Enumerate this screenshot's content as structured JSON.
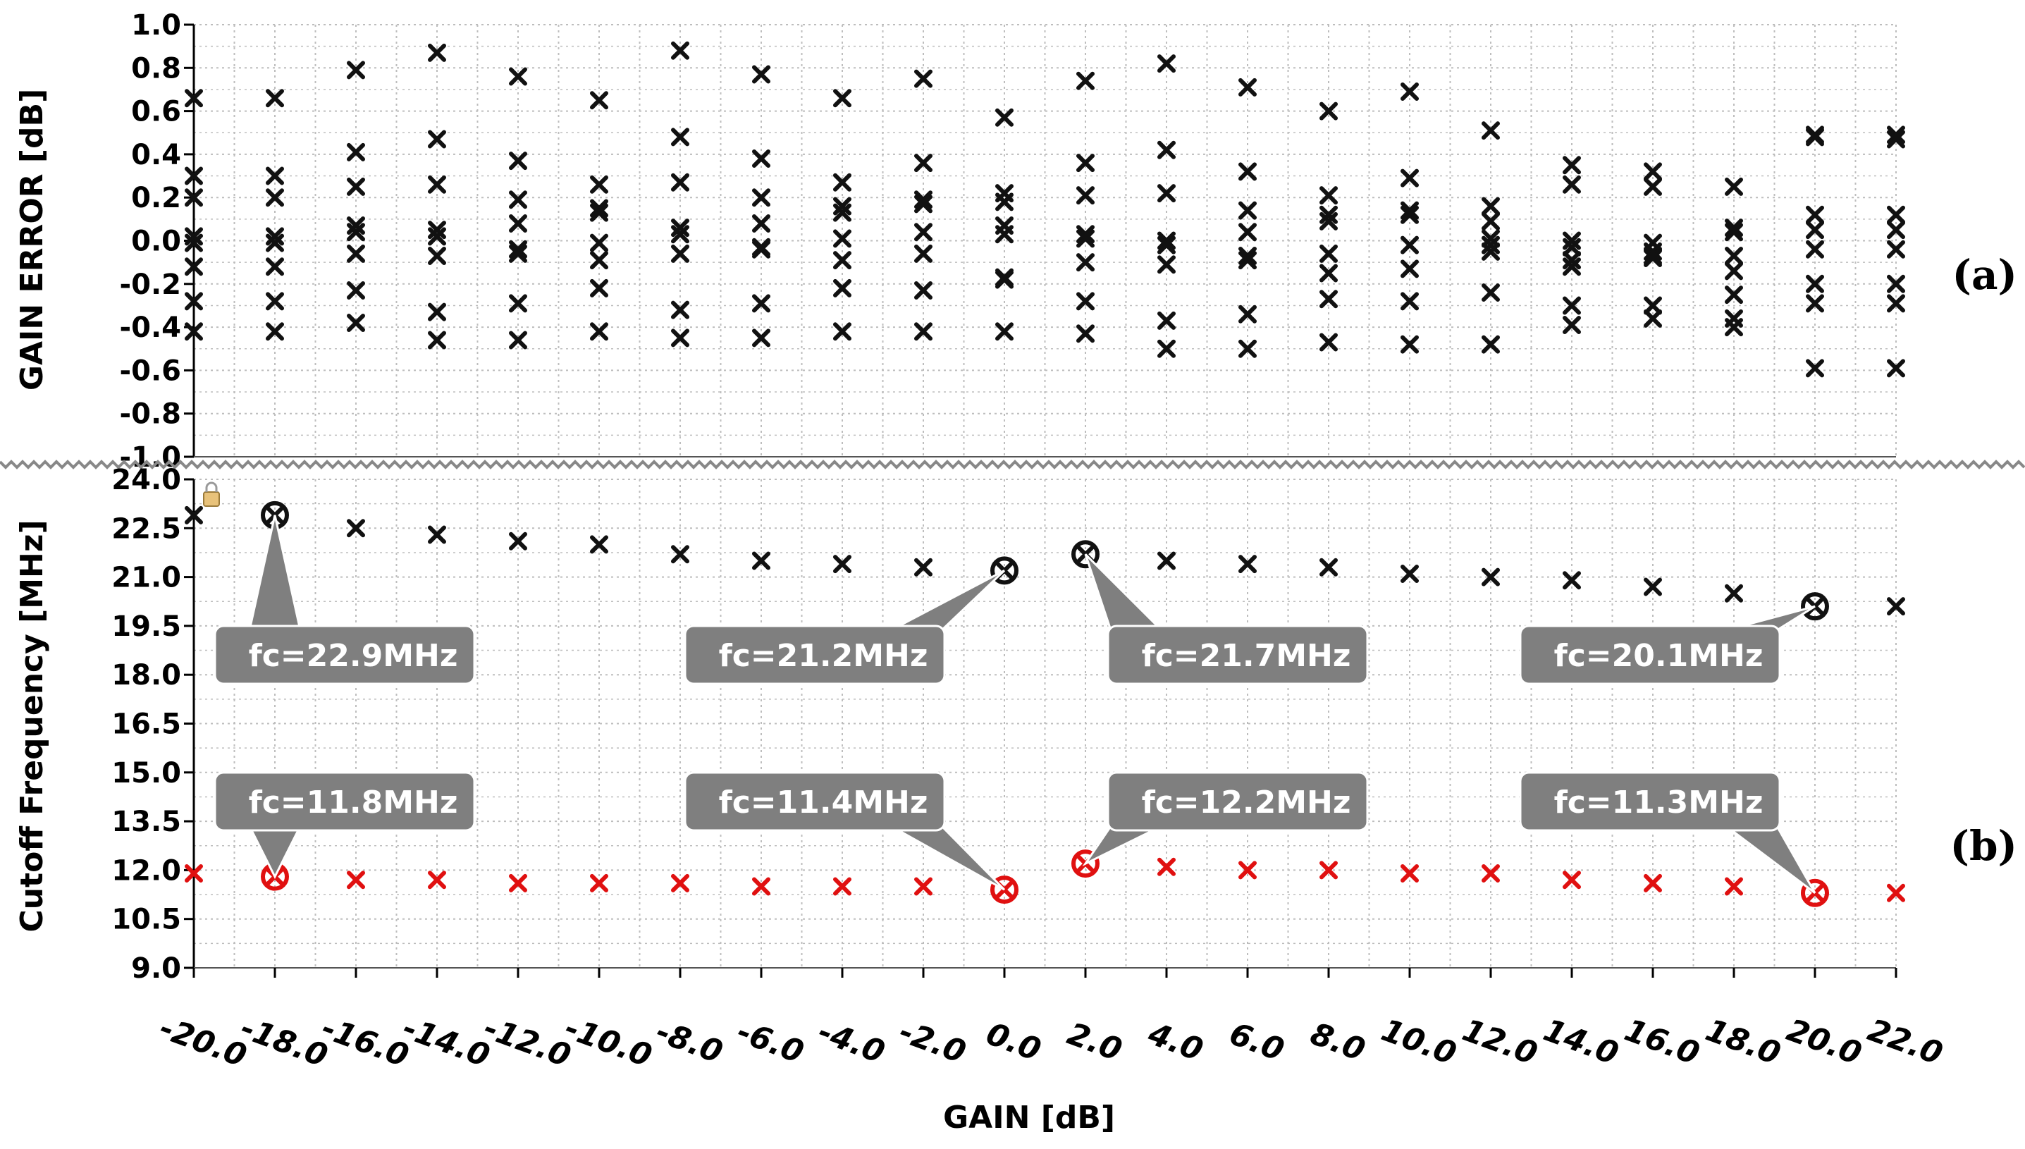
{
  "panel_labels": {
    "a": "(a)",
    "b": "(b)"
  },
  "colors": {
    "black_series": "#111111",
    "red_series": "#e01010",
    "callout_bg": "#7f7f7f",
    "grid": "#bdbdbd"
  },
  "chart_data": [
    {
      "id": "a",
      "type": "scatter",
      "title": "",
      "xlabel": "GAIN [dB]",
      "ylabel": "GAIN ERROR [dB]",
      "ylim": [
        -1.0,
        1.0
      ],
      "yticks": [
        "-1.0",
        "-0.8",
        "-0.6",
        "-0.4",
        "-0.2",
        "0.0",
        "0.2",
        "0.4",
        "0.6",
        "0.8",
        "1.0"
      ],
      "ytick_values": [
        -1.0,
        -0.8,
        -0.6,
        -0.4,
        -0.2,
        0.0,
        0.2,
        0.4,
        0.6,
        0.8,
        1.0
      ],
      "grid": true,
      "points": [
        [
          -20,
          0.66
        ],
        [
          -20,
          0.3
        ],
        [
          -20,
          0.2
        ],
        [
          -20,
          0.02
        ],
        [
          -20,
          -0.01
        ],
        [
          -20,
          -0.12
        ],
        [
          -20,
          -0.28
        ],
        [
          -20,
          -0.42
        ],
        [
          -18,
          0.66
        ],
        [
          -18,
          0.3
        ],
        [
          -18,
          0.2
        ],
        [
          -18,
          0.02
        ],
        [
          -18,
          -0.01
        ],
        [
          -18,
          -0.12
        ],
        [
          -18,
          -0.28
        ],
        [
          -18,
          -0.42
        ],
        [
          -16,
          0.79
        ],
        [
          -16,
          0.41
        ],
        [
          -16,
          0.25
        ],
        [
          -16,
          0.07
        ],
        [
          -16,
          0.04
        ],
        [
          -16,
          -0.06
        ],
        [
          -16,
          -0.23
        ],
        [
          -16,
          -0.38
        ],
        [
          -14,
          0.87
        ],
        [
          -14,
          0.47
        ],
        [
          -14,
          0.26
        ],
        [
          -14,
          0.05
        ],
        [
          -14,
          0.02
        ],
        [
          -14,
          -0.07
        ],
        [
          -14,
          -0.33
        ],
        [
          -14,
          -0.46
        ],
        [
          -12,
          0.76
        ],
        [
          -12,
          0.37
        ],
        [
          -12,
          0.19
        ],
        [
          -12,
          0.08
        ],
        [
          -12,
          -0.04
        ],
        [
          -12,
          -0.06
        ],
        [
          -12,
          -0.29
        ],
        [
          -12,
          -0.46
        ],
        [
          -10,
          0.65
        ],
        [
          -10,
          0.26
        ],
        [
          -10,
          0.15
        ],
        [
          -10,
          0.13
        ],
        [
          -10,
          -0.01
        ],
        [
          -10,
          -0.09
        ],
        [
          -10,
          -0.22
        ],
        [
          -10,
          -0.42
        ],
        [
          -8,
          0.88
        ],
        [
          -8,
          0.48
        ],
        [
          -8,
          0.27
        ],
        [
          -8,
          0.06
        ],
        [
          -8,
          0.03
        ],
        [
          -8,
          -0.06
        ],
        [
          -8,
          -0.32
        ],
        [
          -8,
          -0.45
        ],
        [
          -6,
          0.77
        ],
        [
          -6,
          0.38
        ],
        [
          -6,
          0.2
        ],
        [
          -6,
          0.08
        ],
        [
          -6,
          -0.03
        ],
        [
          -6,
          -0.04
        ],
        [
          -6,
          -0.29
        ],
        [
          -6,
          -0.45
        ],
        [
          -4,
          0.66
        ],
        [
          -4,
          0.27
        ],
        [
          -4,
          0.16
        ],
        [
          -4,
          0.13
        ],
        [
          -4,
          0.01
        ],
        [
          -4,
          -0.09
        ],
        [
          -4,
          -0.22
        ],
        [
          -4,
          -0.42
        ],
        [
          -2,
          0.75
        ],
        [
          -2,
          0.36
        ],
        [
          -2,
          0.19
        ],
        [
          -2,
          0.17
        ],
        [
          -2,
          0.04
        ],
        [
          -2,
          -0.06
        ],
        [
          -2,
          -0.23
        ],
        [
          -2,
          -0.42
        ],
        [
          0,
          0.57
        ],
        [
          0,
          0.22
        ],
        [
          0,
          0.18
        ],
        [
          0,
          0.07
        ],
        [
          0,
          0.03
        ],
        [
          0,
          -0.17
        ],
        [
          0,
          -0.18
        ],
        [
          0,
          -0.42
        ],
        [
          2,
          0.74
        ],
        [
          2,
          0.36
        ],
        [
          2,
          0.21
        ],
        [
          2,
          0.03
        ],
        [
          2,
          0.01
        ],
        [
          2,
          -0.1
        ],
        [
          2,
          -0.28
        ],
        [
          2,
          -0.43
        ],
        [
          4,
          0.82
        ],
        [
          4,
          0.42
        ],
        [
          4,
          0.22
        ],
        [
          4,
          0.0
        ],
        [
          4,
          -0.02
        ],
        [
          4,
          -0.11
        ],
        [
          4,
          -0.37
        ],
        [
          4,
          -0.5
        ],
        [
          6,
          0.71
        ],
        [
          6,
          0.32
        ],
        [
          6,
          0.14
        ],
        [
          6,
          0.04
        ],
        [
          6,
          -0.07
        ],
        [
          6,
          -0.09
        ],
        [
          6,
          -0.34
        ],
        [
          6,
          -0.5
        ],
        [
          8,
          0.6
        ],
        [
          8,
          0.21
        ],
        [
          8,
          0.12
        ],
        [
          8,
          0.09
        ],
        [
          8,
          -0.06
        ],
        [
          8,
          -0.15
        ],
        [
          8,
          -0.27
        ],
        [
          8,
          -0.47
        ],
        [
          10,
          0.69
        ],
        [
          10,
          0.29
        ],
        [
          10,
          0.14
        ],
        [
          10,
          0.12
        ],
        [
          10,
          -0.02
        ],
        [
          10,
          -0.13
        ],
        [
          10,
          -0.28
        ],
        [
          10,
          -0.48
        ],
        [
          12,
          0.51
        ],
        [
          12,
          0.16
        ],
        [
          12,
          0.09
        ],
        [
          12,
          0.01
        ],
        [
          12,
          -0.02
        ],
        [
          12,
          -0.05
        ],
        [
          12,
          -0.24
        ],
        [
          12,
          -0.48
        ],
        [
          14,
          0.35
        ],
        [
          14,
          0.26
        ],
        [
          14,
          0.0
        ],
        [
          14,
          -0.03
        ],
        [
          14,
          -0.09
        ],
        [
          14,
          -0.12
        ],
        [
          14,
          -0.3
        ],
        [
          14,
          -0.39
        ],
        [
          16,
          0.32
        ],
        [
          16,
          0.25
        ],
        [
          16,
          -0.01
        ],
        [
          16,
          -0.05
        ],
        [
          16,
          -0.07
        ],
        [
          16,
          -0.08
        ],
        [
          16,
          -0.3
        ],
        [
          16,
          -0.36
        ],
        [
          18,
          0.25
        ],
        [
          18,
          0.06
        ],
        [
          18,
          0.04
        ],
        [
          18,
          -0.07
        ],
        [
          18,
          -0.14
        ],
        [
          18,
          -0.25
        ],
        [
          18,
          -0.36
        ],
        [
          18,
          -0.4
        ],
        [
          20,
          0.49
        ],
        [
          20,
          0.48
        ],
        [
          20,
          0.12
        ],
        [
          20,
          0.05
        ],
        [
          20,
          -0.04
        ],
        [
          20,
          -0.2
        ],
        [
          20,
          -0.29
        ],
        [
          20,
          -0.59
        ],
        [
          22,
          0.49
        ],
        [
          22,
          0.47
        ],
        [
          22,
          0.12
        ],
        [
          22,
          0.05
        ],
        [
          22,
          -0.04
        ],
        [
          22,
          -0.2
        ],
        [
          22,
          -0.29
        ],
        [
          22,
          -0.59
        ]
      ]
    },
    {
      "id": "b",
      "type": "scatter",
      "title": "",
      "xlabel": "GAIN [dB]",
      "ylabel": "Cutoff Frequency [MHz]",
      "ylim": [
        9.0,
        24.0
      ],
      "yticks": [
        "9.0",
        "10.5",
        "12.0",
        "13.5",
        "15.0",
        "16.5",
        "18.0",
        "19.5",
        "21.0",
        "22.5",
        "24.0"
      ],
      "ytick_values": [
        9.0,
        10.5,
        12.0,
        13.5,
        15.0,
        16.5,
        18.0,
        19.5,
        21.0,
        22.5,
        24.0
      ],
      "xlim": [
        -20.0,
        22.0
      ],
      "xticks": [
        "-20.0",
        "-18.0",
        "-16.0",
        "-14.0",
        "-12.0",
        "-10.0",
        "-8.0",
        "-6.0",
        "-4.0",
        "-2.0",
        "0.0",
        "2.0",
        "4.0",
        "6.0",
        "8.0",
        "10.0",
        "12.0",
        "14.0",
        "16.0",
        "18.0",
        "20.0",
        "22.0"
      ],
      "xtick_values": [
        -20,
        -18,
        -16,
        -14,
        -12,
        -10,
        -8,
        -6,
        -4,
        -2,
        0,
        2,
        4,
        6,
        8,
        10,
        12,
        14,
        16,
        18,
        20,
        22
      ],
      "grid": true,
      "series": [
        {
          "color": "#111111",
          "x": [
            -20,
            -18,
            -16,
            -14,
            -12,
            -10,
            -8,
            -6,
            -4,
            -2,
            0,
            2,
            4,
            6,
            8,
            10,
            12,
            14,
            16,
            18,
            20,
            22
          ],
          "y": [
            22.9,
            22.9,
            22.5,
            22.3,
            22.1,
            22.0,
            21.7,
            21.5,
            21.4,
            21.3,
            21.2,
            21.7,
            21.5,
            21.4,
            21.3,
            21.1,
            21.0,
            20.9,
            20.7,
            20.5,
            20.1,
            20.1
          ],
          "highlighted_x": [
            -18,
            0,
            2,
            20
          ]
        },
        {
          "color": "#e01010",
          "x": [
            -20,
            -18,
            -16,
            -14,
            -12,
            -10,
            -8,
            -6,
            -4,
            -2,
            0,
            2,
            4,
            6,
            8,
            10,
            12,
            14,
            16,
            18,
            20,
            22
          ],
          "y": [
            11.9,
            11.8,
            11.7,
            11.7,
            11.6,
            11.6,
            11.6,
            11.5,
            11.5,
            11.5,
            11.4,
            12.2,
            12.1,
            12.0,
            12.0,
            11.9,
            11.9,
            11.7,
            11.6,
            11.5,
            11.3,
            11.3
          ],
          "highlighted_x": [
            -18,
            0,
            2,
            20
          ]
        }
      ],
      "annotations": [
        {
          "text": "fc=22.9MHz",
          "x": -18,
          "y": 22.9
        },
        {
          "text": "fc=21.2MHz",
          "x": 0,
          "y": 21.2
        },
        {
          "text": "fc=21.7MHz",
          "x": 2,
          "y": 21.7
        },
        {
          "text": "fc=20.1MHz",
          "x": 20,
          "y": 20.1
        },
        {
          "text": "fc=11.8MHz",
          "x": -18,
          "y": 11.8
        },
        {
          "text": "fc=11.4MHz",
          "x": 0,
          "y": 11.4
        },
        {
          "text": "fc=12.2MHz",
          "x": 2,
          "y": 12.2
        },
        {
          "text": "fc=11.3MHz",
          "x": 20,
          "y": 11.3
        }
      ]
    }
  ]
}
